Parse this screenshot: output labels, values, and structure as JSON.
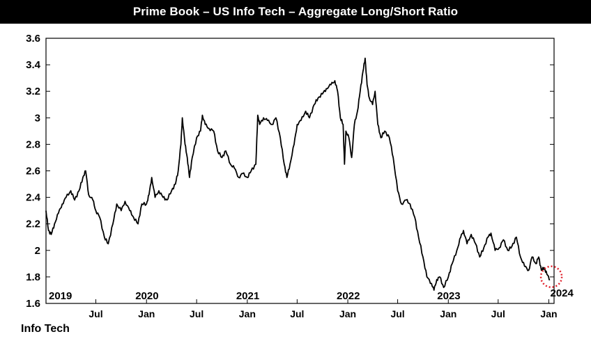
{
  "chart_data": {
    "type": "line",
    "title": "Prime Book – US Info Tech – Aggregate Long/Short Ratio",
    "legend_label": "Info Tech",
    "ylim": [
      1.6,
      3.6
    ],
    "y_ticks": [
      "3.6",
      "3.4",
      "3.2",
      "3",
      "2.8",
      "2.6",
      "2.4",
      "2.2",
      "2",
      "1.8",
      "1.6"
    ],
    "x_range": [
      "2019-01-01",
      "2024-01-20"
    ],
    "year_labels": [
      {
        "date": "2019-01-01",
        "label": "2019"
      },
      {
        "date": "2020-01-01",
        "label": "2020"
      },
      {
        "date": "2021-01-01",
        "label": "2021"
      },
      {
        "date": "2022-01-01",
        "label": "2022"
      },
      {
        "date": "2023-01-01",
        "label": "2023"
      },
      {
        "date": "2024-01-01",
        "label": "2024"
      }
    ],
    "month_labels": [
      {
        "date": "2019-07-01",
        "label": "Jul"
      },
      {
        "date": "2020-01-01",
        "label": "Jan"
      },
      {
        "date": "2020-07-01",
        "label": "Jul"
      },
      {
        "date": "2021-01-01",
        "label": "Jan"
      },
      {
        "date": "2021-07-01",
        "label": "Jul"
      },
      {
        "date": "2022-01-01",
        "label": "Jan"
      },
      {
        "date": "2022-07-01",
        "label": "Jul"
      },
      {
        "date": "2023-01-01",
        "label": "Jan"
      },
      {
        "date": "2023-07-01",
        "label": "Jul"
      },
      {
        "date": "2024-01-01",
        "label": "Jan"
      }
    ],
    "grid": false,
    "line_color": "#000000",
    "highlight_color": "#e0202a",
    "series": [
      {
        "points": [
          [
            "2019-01-01",
            2.3
          ],
          [
            "2019-01-10",
            2.15
          ],
          [
            "2019-01-20",
            2.12
          ],
          [
            "2019-02-01",
            2.2
          ],
          [
            "2019-02-15",
            2.28
          ],
          [
            "2019-03-01",
            2.35
          ],
          [
            "2019-03-15",
            2.4
          ],
          [
            "2019-04-01",
            2.45
          ],
          [
            "2019-04-15",
            2.38
          ],
          [
            "2019-05-01",
            2.45
          ],
          [
            "2019-05-15",
            2.55
          ],
          [
            "2019-05-25",
            2.6
          ],
          [
            "2019-06-05",
            2.42
          ],
          [
            "2019-06-20",
            2.38
          ],
          [
            "2019-07-01",
            2.3
          ],
          [
            "2019-07-15",
            2.25
          ],
          [
            "2019-08-01",
            2.1
          ],
          [
            "2019-08-15",
            2.05
          ],
          [
            "2019-09-01",
            2.2
          ],
          [
            "2019-09-15",
            2.35
          ],
          [
            "2019-10-01",
            2.3
          ],
          [
            "2019-10-15",
            2.37
          ],
          [
            "2019-11-01",
            2.3
          ],
          [
            "2019-11-15",
            2.25
          ],
          [
            "2019-12-01",
            2.2
          ],
          [
            "2019-12-15",
            2.35
          ],
          [
            "2020-01-01",
            2.35
          ],
          [
            "2020-01-10",
            2.42
          ],
          [
            "2020-01-20",
            2.55
          ],
          [
            "2020-02-01",
            2.4
          ],
          [
            "2020-02-15",
            2.45
          ],
          [
            "2020-03-01",
            2.4
          ],
          [
            "2020-03-15",
            2.38
          ],
          [
            "2020-04-01",
            2.45
          ],
          [
            "2020-04-15",
            2.5
          ],
          [
            "2020-04-25",
            2.6
          ],
          [
            "2020-05-05",
            2.8
          ],
          [
            "2020-05-10",
            3.0
          ],
          [
            "2020-05-20",
            2.8
          ],
          [
            "2020-05-28",
            2.7
          ],
          [
            "2020-06-05",
            2.55
          ],
          [
            "2020-06-15",
            2.7
          ],
          [
            "2020-07-01",
            2.85
          ],
          [
            "2020-07-15",
            2.9
          ],
          [
            "2020-07-22",
            3.02
          ],
          [
            "2020-08-01",
            2.95
          ],
          [
            "2020-08-15",
            2.92
          ],
          [
            "2020-09-01",
            2.9
          ],
          [
            "2020-09-15",
            2.75
          ],
          [
            "2020-10-01",
            2.7
          ],
          [
            "2020-10-15",
            2.75
          ],
          [
            "2020-11-01",
            2.65
          ],
          [
            "2020-11-15",
            2.62
          ],
          [
            "2020-12-01",
            2.55
          ],
          [
            "2020-12-15",
            2.58
          ],
          [
            "2021-01-01",
            2.55
          ],
          [
            "2021-01-15",
            2.6
          ],
          [
            "2021-02-01",
            2.65
          ],
          [
            "2021-02-08",
            3.02
          ],
          [
            "2021-02-15",
            2.95
          ],
          [
            "2021-03-01",
            3.0
          ],
          [
            "2021-03-15",
            2.98
          ],
          [
            "2021-04-01",
            2.95
          ],
          [
            "2021-04-15",
            3.0
          ],
          [
            "2021-05-01",
            2.85
          ],
          [
            "2021-05-15",
            2.65
          ],
          [
            "2021-05-25",
            2.55
          ],
          [
            "2021-06-05",
            2.65
          ],
          [
            "2021-06-20",
            2.8
          ],
          [
            "2021-07-01",
            2.95
          ],
          [
            "2021-07-15",
            2.98
          ],
          [
            "2021-08-01",
            3.05
          ],
          [
            "2021-08-15",
            3.0
          ],
          [
            "2021-09-01",
            3.1
          ],
          [
            "2021-09-15",
            3.15
          ],
          [
            "2021-10-01",
            3.18
          ],
          [
            "2021-10-15",
            3.22
          ],
          [
            "2021-11-01",
            3.25
          ],
          [
            "2021-11-15",
            3.28
          ],
          [
            "2021-11-25",
            3.2
          ],
          [
            "2021-12-05",
            3.0
          ],
          [
            "2021-12-15",
            2.95
          ],
          [
            "2021-12-20",
            2.65
          ],
          [
            "2021-12-25",
            2.9
          ],
          [
            "2022-01-05",
            2.85
          ],
          [
            "2022-01-15",
            2.7
          ],
          [
            "2022-01-25",
            2.95
          ],
          [
            "2022-02-05",
            3.05
          ],
          [
            "2022-02-15",
            3.2
          ],
          [
            "2022-02-25",
            3.35
          ],
          [
            "2022-03-05",
            3.45
          ],
          [
            "2022-03-12",
            3.25
          ],
          [
            "2022-03-20",
            3.15
          ],
          [
            "2022-04-01",
            3.1
          ],
          [
            "2022-04-10",
            3.2
          ],
          [
            "2022-04-20",
            2.95
          ],
          [
            "2022-05-01",
            2.85
          ],
          [
            "2022-05-15",
            2.9
          ],
          [
            "2022-06-01",
            2.85
          ],
          [
            "2022-06-15",
            2.7
          ],
          [
            "2022-07-01",
            2.45
          ],
          [
            "2022-07-15",
            2.35
          ],
          [
            "2022-08-01",
            2.38
          ],
          [
            "2022-08-15",
            2.35
          ],
          [
            "2022-09-01",
            2.25
          ],
          [
            "2022-09-15",
            2.1
          ],
          [
            "2022-10-01",
            1.95
          ],
          [
            "2022-10-15",
            1.8
          ],
          [
            "2022-11-01",
            1.75
          ],
          [
            "2022-11-10",
            1.7
          ],
          [
            "2022-11-20",
            1.78
          ],
          [
            "2022-12-01",
            1.8
          ],
          [
            "2022-12-15",
            1.72
          ],
          [
            "2023-01-01",
            1.8
          ],
          [
            "2023-01-15",
            1.9
          ],
          [
            "2023-02-01",
            2.0
          ],
          [
            "2023-02-15",
            2.1
          ],
          [
            "2023-02-25",
            2.15
          ],
          [
            "2023-03-10",
            2.05
          ],
          [
            "2023-03-25",
            2.12
          ],
          [
            "2023-04-10",
            2.05
          ],
          [
            "2023-04-25",
            1.95
          ],
          [
            "2023-05-10",
            2.02
          ],
          [
            "2023-05-25",
            2.1
          ],
          [
            "2023-06-05",
            2.13
          ],
          [
            "2023-06-20",
            2.0
          ],
          [
            "2023-07-05",
            2.02
          ],
          [
            "2023-07-20",
            2.08
          ],
          [
            "2023-08-05",
            2.0
          ],
          [
            "2023-08-20",
            2.03
          ],
          [
            "2023-09-05",
            2.1
          ],
          [
            "2023-09-20",
            1.95
          ],
          [
            "2023-10-05",
            1.88
          ],
          [
            "2023-10-20",
            1.85
          ],
          [
            "2023-11-01",
            1.95
          ],
          [
            "2023-11-15",
            1.9
          ],
          [
            "2023-11-25",
            1.95
          ],
          [
            "2023-12-05",
            1.85
          ],
          [
            "2023-12-15",
            1.87
          ],
          [
            "2023-12-25",
            1.82
          ],
          [
            "2024-01-05",
            1.78
          ]
        ]
      }
    ]
  }
}
